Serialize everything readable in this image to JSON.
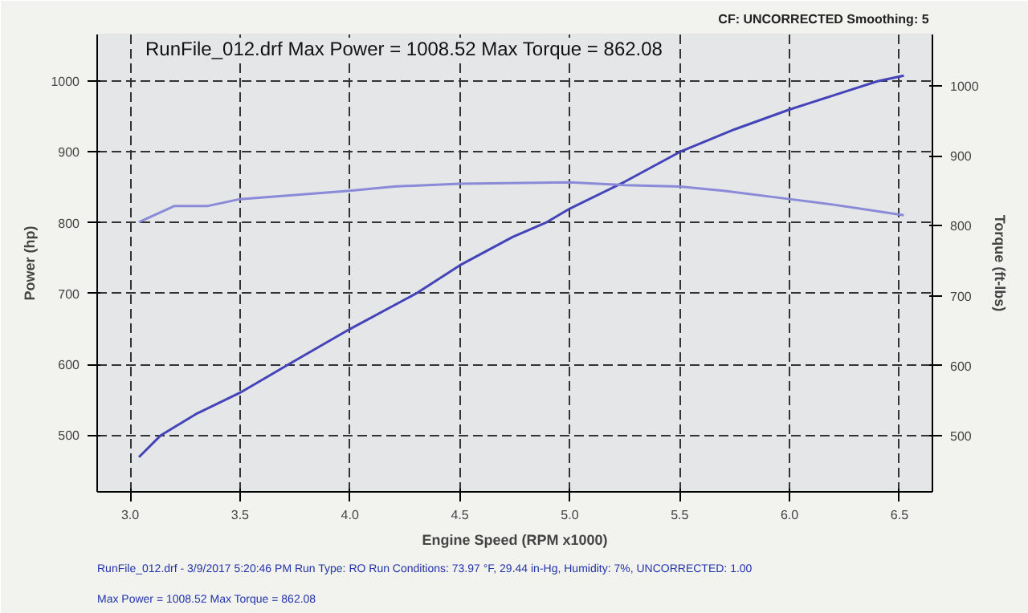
{
  "chart_data": {
    "type": "line",
    "xlabel": "Engine Speed (RPM x1000)",
    "ylabel": "Power (hp)",
    "y2label": "Torque (ft-lbs)",
    "annotations": [
      "CF: UNCORRECTED  Smoothing: 5",
      "RunFile_012.drf Max Power = 1008.52    Max Torque = 862.08",
      "RunFile_012.drf - 3/9/2017 5:20:46 PM  Run Type: RO  Run Conditions: 73.97 °F, 29.44 in-Hg, Humidity: 7%, UNCORRECTED: 1.00",
      "Max Power = 1008.52  Max Torque = 862.08"
    ],
    "series": [
      {
        "color": "#4444b8",
        "x": [
          3.04,
          3.14,
          3.3,
          3.5,
          3.72,
          4.0,
          4.3,
          4.5,
          4.74,
          4.89,
          5.0,
          5.25,
          5.5,
          5.75,
          6.0,
          6.2,
          6.4,
          6.52
        ],
        "values": [
          469,
          500,
          530,
          560,
          600,
          650,
          700,
          740,
          780,
          800,
          820,
          858,
          900,
          932,
          960,
          980,
          1000,
          1008
        ]
      },
      {
        "color": "#8a8ad8",
        "axis": "y2",
        "x": [
          3.04,
          3.2,
          3.35,
          3.5,
          4.0,
          4.2,
          4.5,
          5.0,
          5.25,
          5.5,
          5.7,
          6.0,
          6.2,
          6.52
        ],
        "values": [
          805,
          828,
          828,
          838,
          850,
          856,
          860,
          862,
          858,
          856,
          850,
          838,
          830,
          815
        ]
      }
    ],
    "xlim": [
      2.85,
      6.65
    ],
    "xticks": [
      {
        "value": 3.0,
        "label": "3.0"
      },
      3.5,
      {
        "value": 4.0,
        "label": "4.0"
      },
      4.5,
      {
        "value": 5.0,
        "label": "5.0"
      },
      5.5,
      {
        "value": 6.0,
        "label": "6.0"
      },
      6.5
    ],
    "ylim": [
      420,
      1066
    ],
    "yticks": [
      500,
      600,
      700,
      800,
      900,
      1000
    ],
    "y2lim": [
      420,
      1073
    ],
    "y2ticks": [
      500,
      600,
      700,
      800,
      900,
      1000
    ],
    "grid": true,
    "line_style": "solid"
  }
}
